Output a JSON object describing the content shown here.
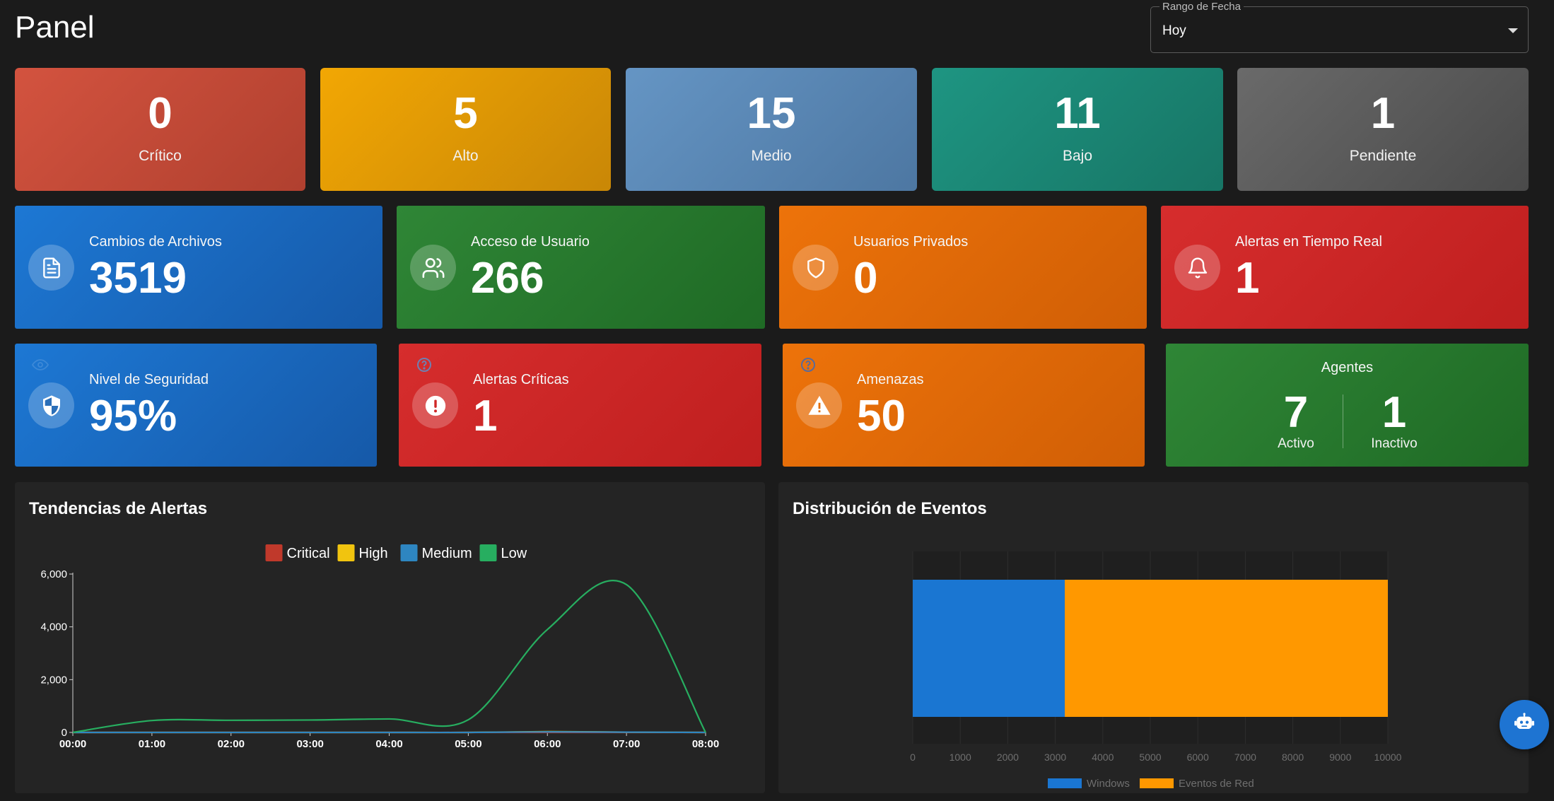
{
  "page": {
    "title": "Panel"
  },
  "date_range": {
    "label": "Rango de Fecha",
    "value": "Hoy"
  },
  "severity_cards": [
    {
      "count": "0",
      "label": "Crítico",
      "color": "#c84b3c"
    },
    {
      "count": "5",
      "label": "Alto",
      "color": "#e39e05"
    },
    {
      "count": "15",
      "label": "Medio",
      "color": "#5b86b5"
    },
    {
      "count": "11",
      "label": "Bajo",
      "color": "#1a8b78"
    },
    {
      "count": "1",
      "label": "Pendiente",
      "color": "#595959"
    }
  ],
  "stat_cards_row1": [
    {
      "label": "Cambios de Archivos",
      "value": "3519",
      "icon": "file-document-icon",
      "color": "#1a6fc8"
    },
    {
      "label": "Acceso de Usuario",
      "value": "266",
      "icon": "users-icon",
      "color": "#2a7a32"
    },
    {
      "label": "Usuarios Privados",
      "value": "0",
      "icon": "shield-icon",
      "color": "#e36d08"
    },
    {
      "label": "Alertas en Tiempo Real",
      "value": "1",
      "icon": "bell-icon",
      "color": "#cf2727"
    }
  ],
  "stat_cards_row2": [
    {
      "label": "Nivel de Seguridad",
      "value": "95%",
      "icon": "security-shield-icon",
      "color": "#1a6fc8"
    },
    {
      "label": "Alertas Críticas",
      "value": "1",
      "icon": "alert-circle-icon",
      "color": "#cf2727"
    },
    {
      "label": "Amenazas",
      "value": "50",
      "icon": "warning-triangle-icon",
      "color": "#e36d08"
    }
  ],
  "agents": {
    "title": "Agentes",
    "active_count": "7",
    "active_label": "Activo",
    "inactive_count": "1",
    "inactive_label": "Inactivo",
    "color": "#2a7a32"
  },
  "alert_trends": {
    "title": "Tendencias de Alertas",
    "chart_data": {
      "type": "line",
      "x": [
        "00:00",
        "01:00",
        "02:00",
        "03:00",
        "04:00",
        "05:00",
        "06:00",
        "07:00",
        "08:00"
      ],
      "series": [
        {
          "name": "Critical",
          "color": "#c0392b",
          "values": [
            0,
            0,
            0,
            0,
            0,
            0,
            0,
            0,
            0
          ]
        },
        {
          "name": "High",
          "color": "#f1c40f",
          "values": [
            0,
            0,
            0,
            0,
            0,
            0,
            30,
            10,
            0
          ]
        },
        {
          "name": "Medium",
          "color": "#2e86c1",
          "values": [
            0,
            0,
            0,
            0,
            0,
            0,
            20,
            10,
            0
          ]
        },
        {
          "name": "Low",
          "color": "#27ae60",
          "values": [
            0,
            450,
            460,
            470,
            510,
            480,
            3900,
            5600,
            0
          ]
        }
      ],
      "ylim": [
        0,
        6000
      ],
      "yticks": [
        "0",
        "2,000",
        "4,000",
        "6,000"
      ],
      "legend": "top-center",
      "grid": false
    }
  },
  "event_distribution": {
    "title": "Distribución de Eventos",
    "chart_data": {
      "type": "bar",
      "orientation": "horizontal",
      "stacked": true,
      "categories": [
        ""
      ],
      "series": [
        {
          "name": "Windows",
          "color": "#1a76d2",
          "values": [
            3200
          ]
        },
        {
          "name": "Eventos de Red",
          "color": "#ff9800",
          "values": [
            6800
          ]
        }
      ],
      "xlim": [
        0,
        10000
      ],
      "xticks": [
        "0",
        "1000",
        "2000",
        "3000",
        "4000",
        "5000",
        "6000",
        "7000",
        "8000",
        "9000",
        "10000"
      ],
      "legend": "bottom-center",
      "grid": true
    }
  },
  "assistant_button": {
    "icon": "robot-icon"
  }
}
